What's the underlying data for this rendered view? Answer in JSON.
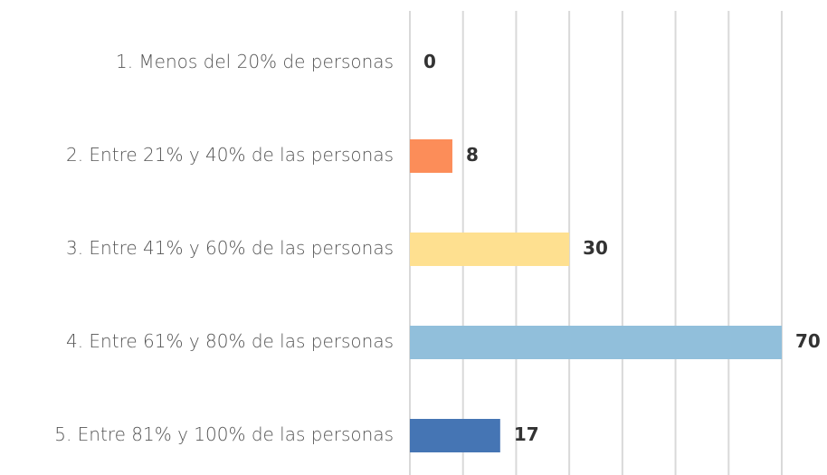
{
  "chart_data": {
    "type": "bar",
    "orientation": "horizontal",
    "categories": [
      "1. Menos del 20% de personas",
      "2. Entre 21% y 40% de las personas",
      "3. Entre 41% y 60% de las personas",
      "4. Entre 61% y 80% de las personas",
      "5. Entre 81% y 100% de las personas"
    ],
    "values": [
      0,
      8,
      30,
      70,
      17
    ],
    "colors": [
      "#fc8d59",
      "#fc8d59",
      "#fee090",
      "#91bfdb",
      "#4575b4"
    ],
    "xlim": [
      0,
      70
    ],
    "xticks": [
      0,
      10,
      20,
      30,
      40,
      50,
      60,
      70
    ],
    "grid": true
  }
}
